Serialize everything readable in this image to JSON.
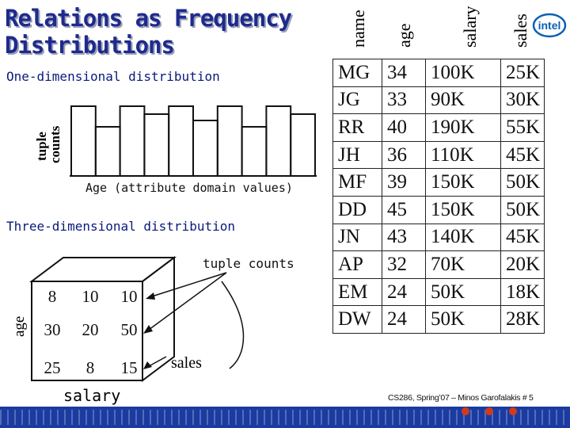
{
  "title": "Relations as Frequency Distributions",
  "one_dim": {
    "heading": "One-dimensional distribution",
    "ylabel_line1": "tuple",
    "ylabel_line2": "counts",
    "xlabel": "Age (attribute domain values)",
    "bar_heights": [
      0.88,
      0.62,
      0.88,
      0.78,
      0.88,
      0.7,
      0.88,
      0.62,
      0.88,
      0.78
    ]
  },
  "three_dim": {
    "heading": "Three-dimensional distribution",
    "tuple_counts_label": "tuple counts",
    "age_label": "age",
    "salary_label": "salary",
    "sales_label": "sales",
    "cells": [
      [
        "8",
        "10",
        "10"
      ],
      [
        "30",
        "20",
        "50"
      ],
      [
        "25",
        "8",
        "15"
      ]
    ]
  },
  "relation": {
    "columns": [
      "name",
      "age",
      "salary",
      "sales"
    ],
    "rows": [
      [
        "MG",
        "34",
        "100K",
        "25K"
      ],
      [
        "JG",
        "33",
        "90K",
        "30K"
      ],
      [
        "RR",
        "40",
        "190K",
        "55K"
      ],
      [
        "JH",
        "36",
        "110K",
        "45K"
      ],
      [
        "MF",
        "39",
        "150K",
        "50K"
      ],
      [
        "DD",
        "45",
        "150K",
        "50K"
      ],
      [
        "JN",
        "43",
        "140K",
        "45K"
      ],
      [
        "AP",
        "32",
        "70K",
        "20K"
      ],
      [
        "EM",
        "24",
        "50K",
        "18K"
      ],
      [
        "DW",
        "24",
        "50K",
        "28K"
      ]
    ]
  },
  "logo": "intel",
  "footer": "CS286, Spring’07 – Minos Garofalakis # 5",
  "colors": {
    "title": "#1e2a8c",
    "footer_bar": "#1b3ba0",
    "logo": "#0a5fb4"
  }
}
